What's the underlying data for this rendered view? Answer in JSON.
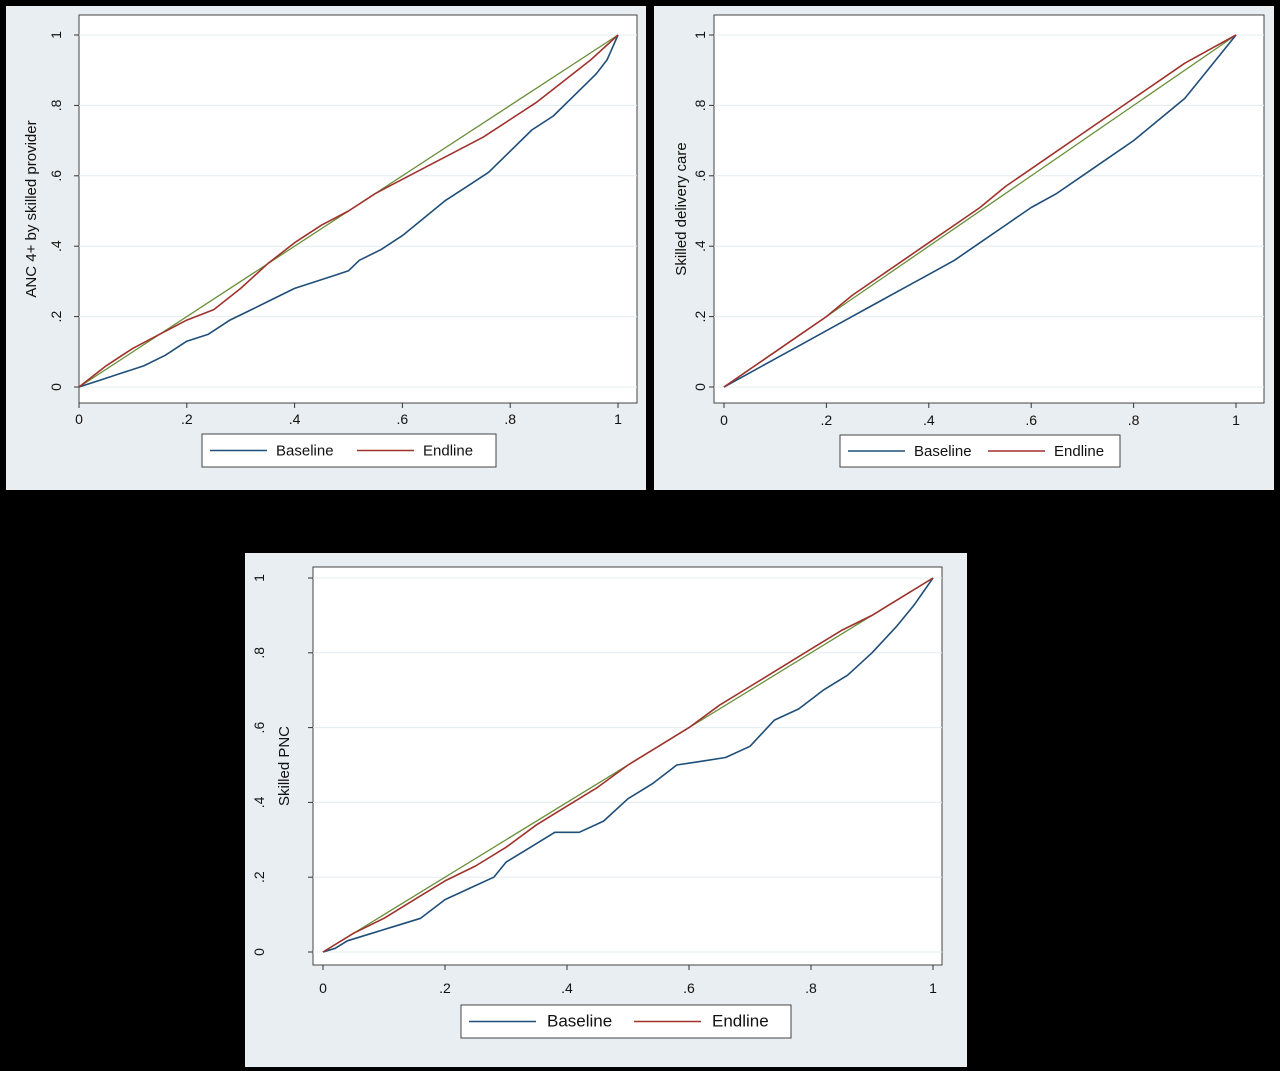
{
  "chart_data": [
    {
      "type": "line",
      "ylabel": "ANC 4+ by skilled provider",
      "xlabel": "",
      "xlim": [
        0,
        1
      ],
      "ylim": [
        0,
        1
      ],
      "x_ticks": [
        "0",
        ".2",
        ".4",
        ".6",
        ".8",
        "1"
      ],
      "y_ticks": [
        "0",
        ".2",
        ".4",
        ".6",
        ".8",
        "1"
      ],
      "grid": true,
      "legend_placement": "bottom",
      "colors": {
        "equality": "#6a8f3a",
        "Baseline": "#1f4e79",
        "Endline": "#a0322d"
      },
      "series": [
        {
          "name": "Baseline",
          "x": [
            0,
            0.04,
            0.08,
            0.12,
            0.16,
            0.2,
            0.24,
            0.28,
            0.32,
            0.36,
            0.4,
            0.44,
            0.48,
            0.5,
            0.52,
            0.56,
            0.6,
            0.64,
            0.68,
            0.72,
            0.76,
            0.8,
            0.84,
            0.88,
            0.92,
            0.96,
            0.98,
            1
          ],
          "y": [
            0,
            0.02,
            0.04,
            0.06,
            0.09,
            0.13,
            0.15,
            0.19,
            0.22,
            0.25,
            0.28,
            0.3,
            0.32,
            0.33,
            0.36,
            0.39,
            0.43,
            0.48,
            0.53,
            0.57,
            0.61,
            0.67,
            0.73,
            0.77,
            0.83,
            0.89,
            0.93,
            1
          ]
        },
        {
          "name": "Endline",
          "x": [
            0,
            0.05,
            0.1,
            0.15,
            0.2,
            0.25,
            0.3,
            0.35,
            0.4,
            0.45,
            0.5,
            0.55,
            0.6,
            0.65,
            0.7,
            0.75,
            0.8,
            0.85,
            0.9,
            0.95,
            1
          ],
          "y": [
            0,
            0.06,
            0.11,
            0.15,
            0.19,
            0.22,
            0.28,
            0.35,
            0.41,
            0.46,
            0.5,
            0.55,
            0.59,
            0.63,
            0.67,
            0.71,
            0.76,
            0.81,
            0.87,
            0.93,
            1
          ]
        }
      ]
    },
    {
      "type": "line",
      "ylabel": "Skilled delivery care",
      "xlabel": "",
      "xlim": [
        0,
        1
      ],
      "ylim": [
        0,
        1
      ],
      "x_ticks": [
        "0",
        ".2",
        ".4",
        ".6",
        ".8",
        "1"
      ],
      "y_ticks": [
        "0",
        ".2",
        ".4",
        ".6",
        ".8",
        "1"
      ],
      "grid": true,
      "legend_placement": "bottom",
      "colors": {
        "equality": "#6a8f3a",
        "Baseline": "#1f4e79",
        "Endline": "#a0322d"
      },
      "series": [
        {
          "name": "Baseline",
          "x": [
            0,
            0.05,
            0.1,
            0.15,
            0.2,
            0.25,
            0.3,
            0.35,
            0.4,
            0.45,
            0.5,
            0.55,
            0.6,
            0.65,
            0.7,
            0.75,
            0.8,
            0.85,
            0.9,
            0.95,
            1
          ],
          "y": [
            0,
            0.04,
            0.08,
            0.12,
            0.16,
            0.2,
            0.24,
            0.28,
            0.32,
            0.36,
            0.41,
            0.46,
            0.51,
            0.55,
            0.6,
            0.65,
            0.7,
            0.76,
            0.82,
            0.91,
            1
          ]
        },
        {
          "name": "Endline",
          "x": [
            0,
            0.05,
            0.1,
            0.15,
            0.2,
            0.25,
            0.3,
            0.35,
            0.4,
            0.45,
            0.5,
            0.55,
            0.6,
            0.65,
            0.7,
            0.75,
            0.8,
            0.85,
            0.9,
            0.95,
            1
          ],
          "y": [
            0,
            0.05,
            0.1,
            0.15,
            0.2,
            0.26,
            0.31,
            0.36,
            0.41,
            0.46,
            0.51,
            0.57,
            0.62,
            0.67,
            0.72,
            0.77,
            0.82,
            0.87,
            0.92,
            0.96,
            1
          ]
        }
      ]
    },
    {
      "type": "line",
      "ylabel": "Skilled PNC",
      "xlabel": "",
      "xlim": [
        0,
        1
      ],
      "ylim": [
        0,
        1
      ],
      "x_ticks": [
        "0",
        ".2",
        ".4",
        ".6",
        ".8",
        "1"
      ],
      "y_ticks": [
        "0",
        ".2",
        ".4",
        ".6",
        ".8",
        "1"
      ],
      "grid": true,
      "legend_placement": "bottom",
      "colors": {
        "equality": "#6a8f3a",
        "Baseline": "#1f4e79",
        "Endline": "#a0322d"
      },
      "series": [
        {
          "name": "Baseline",
          "x": [
            0,
            0.02,
            0.04,
            0.08,
            0.12,
            0.16,
            0.2,
            0.24,
            0.28,
            0.3,
            0.34,
            0.38,
            0.42,
            0.46,
            0.5,
            0.54,
            0.58,
            0.62,
            0.66,
            0.7,
            0.74,
            0.78,
            0.82,
            0.86,
            0.9,
            0.94,
            0.97,
            1
          ],
          "y": [
            0,
            0.01,
            0.03,
            0.05,
            0.07,
            0.09,
            0.14,
            0.17,
            0.2,
            0.24,
            0.28,
            0.32,
            0.32,
            0.35,
            0.41,
            0.45,
            0.5,
            0.51,
            0.52,
            0.55,
            0.62,
            0.65,
            0.7,
            0.74,
            0.8,
            0.87,
            0.93,
            1
          ]
        },
        {
          "name": "Endline",
          "x": [
            0,
            0.05,
            0.1,
            0.15,
            0.2,
            0.25,
            0.3,
            0.35,
            0.4,
            0.45,
            0.5,
            0.55,
            0.6,
            0.65,
            0.7,
            0.75,
            0.8,
            0.85,
            0.9,
            0.95,
            1
          ],
          "y": [
            0,
            0.05,
            0.09,
            0.14,
            0.19,
            0.23,
            0.28,
            0.34,
            0.39,
            0.44,
            0.5,
            0.55,
            0.6,
            0.66,
            0.71,
            0.76,
            0.81,
            0.86,
            0.9,
            0.95,
            1
          ]
        }
      ]
    }
  ]
}
